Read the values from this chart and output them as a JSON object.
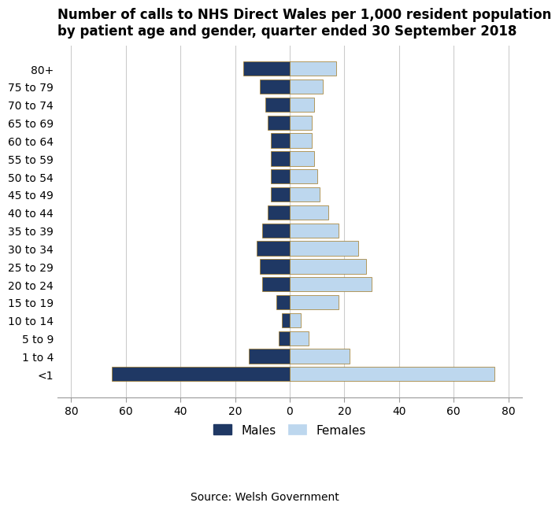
{
  "title": "Number of calls to NHS Direct Wales per 1,000 resident population\nby patient age and gender, quarter ended 30 September 2018",
  "age_groups": [
    "<1",
    "1 to 4",
    "5 to 9",
    "10 to 14",
    "15 to 19",
    "20 to 24",
    "25 to 29",
    "30 to 34",
    "35 to 39",
    "40 to 44",
    "45 to 49",
    "50 to 54",
    "55 to 59",
    "60 to 64",
    "65 to 69",
    "70 to 74",
    "75 to 79",
    "80+"
  ],
  "males": [
    65,
    15,
    4,
    3,
    5,
    10,
    11,
    12,
    10,
    8,
    7,
    7,
    7,
    7,
    8,
    9,
    11,
    17
  ],
  "females": [
    75,
    22,
    7,
    4,
    18,
    30,
    28,
    25,
    18,
    14,
    11,
    10,
    9,
    8,
    8,
    9,
    12,
    17
  ],
  "male_color": "#1F3864",
  "female_color": "#BDD7EE",
  "male_edge_color": "#A07820",
  "female_edge_color": "#A07820",
  "xlim": [
    -85,
    85
  ],
  "xticks": [
    -80,
    -60,
    -40,
    -20,
    0,
    20,
    40,
    60,
    80
  ],
  "xticklabels": [
    "80",
    "60",
    "40",
    "20",
    "0",
    "20",
    "40",
    "60",
    "80"
  ],
  "source": "Source: Welsh Government",
  "background_color": "#ffffff",
  "title_fontsize": 12,
  "tick_fontsize": 10,
  "legend_fontsize": 11
}
